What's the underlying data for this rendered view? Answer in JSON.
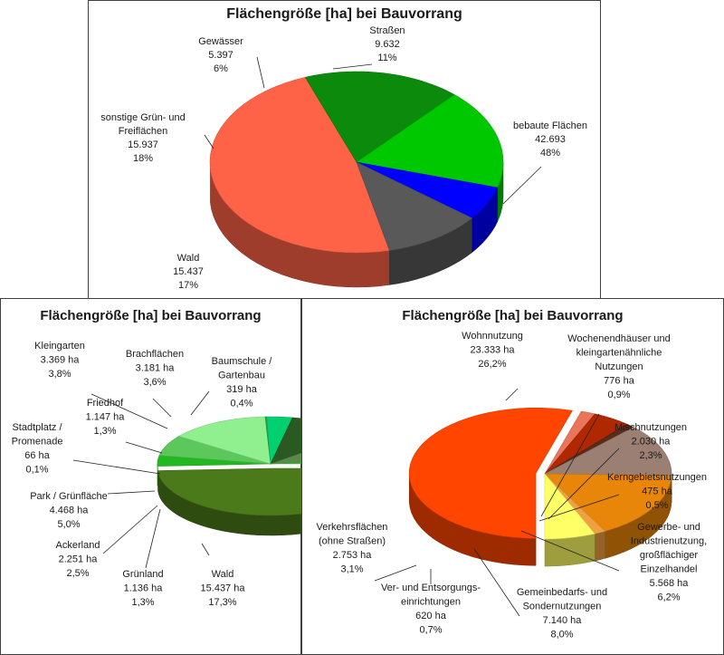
{
  "chart_data": [
    {
      "type": "pie",
      "title": "Flächengröße [ha] bei Bauvorrang",
      "slices": [
        {
          "lines": [
            "bebaute   Flächen",
            "42.693",
            "48%"
          ],
          "value": 42693,
          "percent": "48%",
          "color": "#ff6347"
        },
        {
          "lines": [
            "Wald",
            "15.437",
            "17%"
          ],
          "value": 15437,
          "percent": "17%",
          "color": "#0b8a0b"
        },
        {
          "lines": [
            "sonstige Grün- und",
            "Freiflächen",
            "15.937",
            "18%"
          ],
          "value": 15937,
          "percent": "18%",
          "color": "#00c800"
        },
        {
          "lines": [
            "Gewässer",
            "5.397",
            "6%"
          ],
          "value": 5397,
          "percent": "6%",
          "color": "#0000ff"
        },
        {
          "lines": [
            "Straßen",
            "9.632",
            "11%"
          ],
          "value": 9632,
          "percent": "11%",
          "color": "#595959"
        }
      ]
    },
    {
      "type": "pie",
      "title": "Flächengröße [ha] bei Bauvorrang",
      "slices": [
        {
          "lines": [
            "Wald",
            "15.437 ha",
            "17,3%"
          ],
          "value": 15437,
          "percent": "17,3%",
          "color": "#4a7a1a"
        },
        {
          "lines": [
            "Grünland",
            "1.136 ha",
            "1,3%"
          ],
          "value": 1136,
          "percent": "1,3%",
          "color": "#22b822"
        },
        {
          "lines": [
            "Ackerland",
            "2.251 ha",
            "2,5%"
          ],
          "value": 2251,
          "percent": "2,5%",
          "color": "#5cc85c"
        },
        {
          "lines": [
            "Park / Grünfläche",
            "4.468 ha",
            "5,0%"
          ],
          "value": 4468,
          "percent": "5,0%",
          "color": "#90f090"
        },
        {
          "lines": [
            "Stadtplatz /",
            "Promenade",
            "66 ha",
            "0,1%"
          ],
          "value": 66,
          "percent": "0,1%",
          "color": "#30a050"
        },
        {
          "lines": [
            "Friedhof",
            "1.147 ha",
            "1,3%"
          ],
          "value": 1147,
          "percent": "1,3%",
          "color": "#00d070"
        },
        {
          "lines": [
            "Kleingarten",
            "3.369 ha",
            "3,8%"
          ],
          "value": 3369,
          "percent": "3,8%",
          "color": "#2a5a22"
        },
        {
          "lines": [
            "Brachflächen",
            "3.181 ha",
            "3,6%"
          ],
          "value": 3181,
          "percent": "3,6%",
          "color": "#5a8a4a"
        },
        {
          "lines": [
            "Baumschule /",
            "Gartenbau",
            "319 ha",
            "0,4%"
          ],
          "value": 319,
          "percent": "0,4%",
          "color": "#3ccc3c"
        }
      ]
    },
    {
      "type": "pie",
      "title": "Flächengröße [ha] bei Bauvorrang",
      "slices": [
        {
          "lines": [
            "Wohnnutzung",
            "23.333 ha",
            "26,2%"
          ],
          "value": 23333,
          "percent": "26,2%",
          "color": "#ff4500"
        },
        {
          "lines": [
            "Wochenendhäuser und",
            "kleingartenähnliche",
            "Nutzungen",
            "776 ha",
            "0,9%"
          ],
          "value": 776,
          "percent": "0,9%",
          "color": "#e8765a"
        },
        {
          "lines": [
            "Mischnutzungen",
            "2.030 ha",
            "2,3%"
          ],
          "value": 2030,
          "percent": "2,3%",
          "color": "#b02800"
        },
        {
          "lines": [
            "Kerngebietsnutzungen",
            "475 ha",
            "0,5%"
          ],
          "value": 475,
          "percent": "0,5%",
          "color": "#5a2a1a"
        },
        {
          "lines": [
            "Gewerbe- und",
            "Industrienutzung,",
            "großflächiger",
            "Einzelhandel",
            "5.568 ha",
            "6,2%"
          ],
          "value": 5568,
          "percent": "6,2%",
          "color": "#9a7f72"
        },
        {
          "lines": [
            "Gemeinbedarfs- und",
            "Sondernutzungen",
            "7.140 ha",
            "8,0%"
          ],
          "value": 7140,
          "percent": "8,0%",
          "color": "#e8860a"
        },
        {
          "lines": [
            "Ver- und Entsorgungs-",
            "einrichtungen",
            "620 ha",
            "0,7%"
          ],
          "value": 620,
          "percent": "0,7%",
          "color": "#f0a040"
        },
        {
          "lines": [
            "Verkehrsflächen",
            "(ohne Straßen)",
            "2.753 ha",
            "3,1%"
          ],
          "value": 2753,
          "percent": "3,1%",
          "color": "#ffff66"
        }
      ]
    }
  ]
}
